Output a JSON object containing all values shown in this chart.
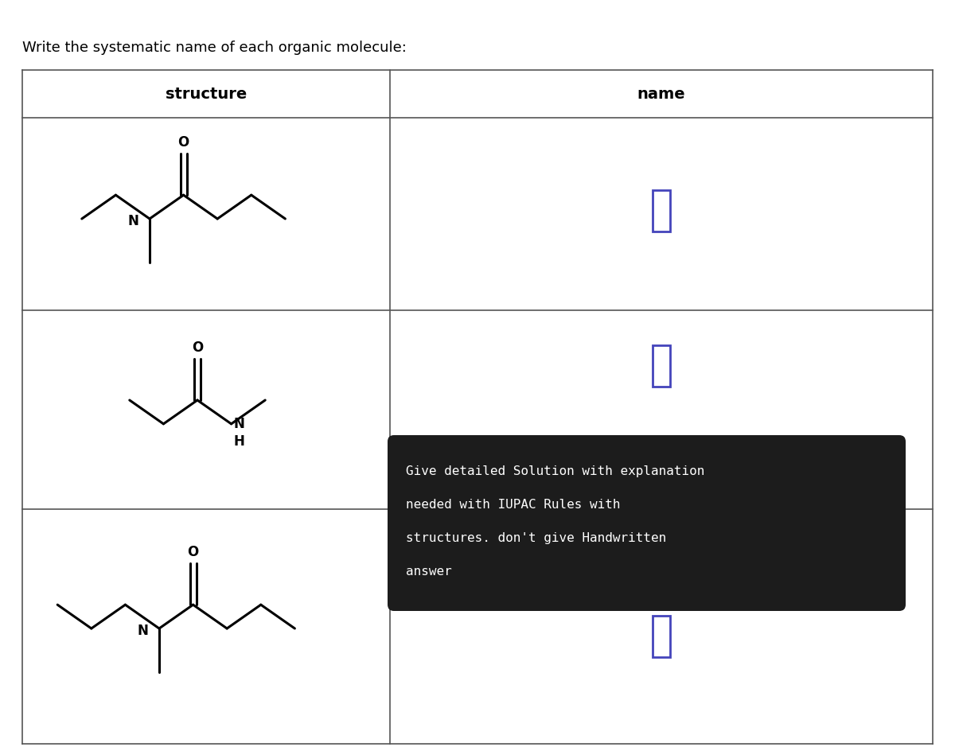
{
  "title": "Write the systematic name of each organic molecule:",
  "col_header_left": "structure",
  "col_header_right": "name",
  "background": "#ffffff",
  "table_line_color": "#555555",
  "overlay_text_lines": [
    "Give detailed Solution with explanation",
    "needed with IUPAC Rules with",
    "structures. don't give Handwritten",
    "answer"
  ],
  "overlay_bg": "#1c1c1c",
  "overlay_text_color": "#ffffff",
  "answer_box_color": "#4444bb",
  "fig_width": 12.0,
  "fig_height": 9.39
}
